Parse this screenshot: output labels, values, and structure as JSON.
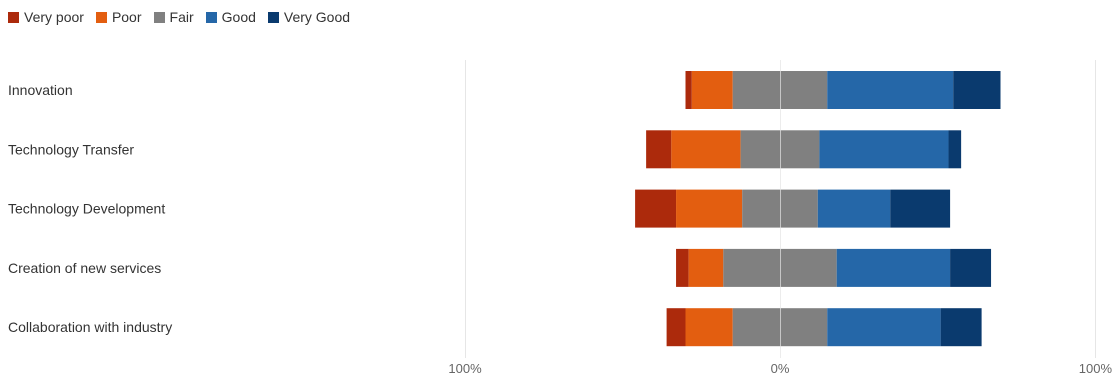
{
  "chart_data": {
    "type": "bar",
    "orientation": "horizontal",
    "stacked": "diverging",
    "title": "",
    "xlabel": "",
    "ylabel": "",
    "legend_position": "top-left",
    "grid": false,
    "xlim": [
      -100,
      100
    ],
    "x_ticks": [
      {
        "value": -100,
        "label": "100%"
      },
      {
        "value": 0,
        "label": "0%"
      },
      {
        "value": 100,
        "label": "100%"
      }
    ],
    "categories": [
      "Innovation",
      "Technology Transfer",
      "Technology Development",
      "Creation of new services",
      "Collaboration with industry"
    ],
    "series": [
      {
        "name": "Very poor",
        "color": "#ac2a0c",
        "values": [
          2,
          8,
          13,
          4,
          6
        ]
      },
      {
        "name": "Poor",
        "color": "#e35e10",
        "values": [
          13,
          22,
          21,
          11,
          15
        ]
      },
      {
        "name": "Fair",
        "color": "#808080",
        "values": [
          30,
          25,
          24,
          36,
          30
        ]
      },
      {
        "name": "Good",
        "color": "#2567a8",
        "values": [
          40,
          41,
          23,
          36,
          36
        ]
      },
      {
        "name": "Very Good",
        "color": "#0a3a6e",
        "values": [
          15,
          4,
          19,
          13,
          13
        ]
      }
    ]
  }
}
